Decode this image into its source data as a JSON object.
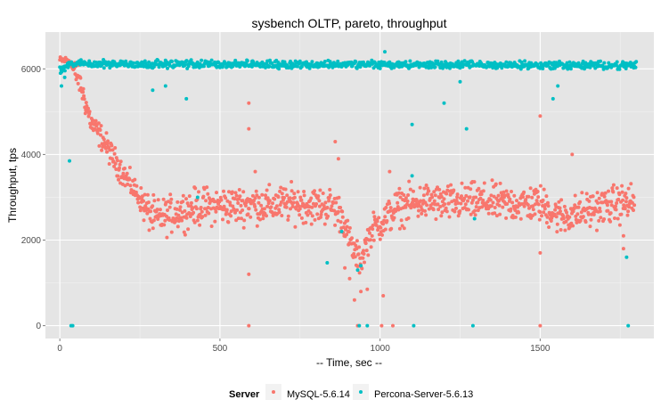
{
  "chart_data": {
    "type": "scatter",
    "title": "sysbench OLTP, pareto, throughput",
    "xlabel": "-- Time, sec --",
    "ylabel": "Throughput, tps",
    "xlim": [
      -45,
      1855
    ],
    "ylim": [
      -300,
      6860
    ],
    "x_ticks": [
      0,
      500,
      1000,
      1500
    ],
    "x_tick_labels": [
      "0",
      "500",
      "1000",
      "1500"
    ],
    "y_ticks": [
      0,
      2000,
      4000,
      6000
    ],
    "y_tick_labels": [
      "0",
      "2000",
      "4000",
      "6000"
    ],
    "grid": true,
    "legend": {
      "title": "Server",
      "placement": "bottom",
      "entries": [
        "MySQL-5.6.14",
        "Percona-Server-5.6.13"
      ]
    },
    "colors": {
      "mysql": "#f8766d",
      "percona": "#00bfc4",
      "panel": "#e5e5e5",
      "grid": "#ffffff"
    },
    "series": [
      {
        "name": "MySQL-5.6.14",
        "color": "#f8766d",
        "profile_x": [
          0,
          30,
          40,
          60,
          80,
          100,
          130,
          160,
          190,
          220,
          250,
          270,
          300,
          330,
          380,
          450,
          500,
          550,
          600,
          650,
          700,
          750,
          800,
          850,
          880,
          900,
          920,
          940,
          960,
          980,
          1000,
          1020,
          1050,
          1100,
          1150,
          1200,
          1300,
          1400,
          1500,
          1530,
          1560,
          1600,
          1650,
          1700,
          1750,
          1795
        ],
        "profile_y": [
          6200,
          6200,
          6000,
          5750,
          5200,
          4700,
          4400,
          4000,
          3650,
          3300,
          3000,
          2700,
          2500,
          2550,
          2700,
          2800,
          2800,
          2800,
          2850,
          2800,
          2850,
          2850,
          2800,
          2800,
          2600,
          2100,
          1700,
          1500,
          2000,
          2300,
          2400,
          2500,
          2750,
          2850,
          2900,
          2850,
          2900,
          2850,
          2850,
          2700,
          2550,
          2600,
          2700,
          2800,
          2850,
          2900
        ],
        "outliers": [
          [
            590,
            5200
          ],
          [
            590,
            4600
          ],
          [
            590,
            1200
          ],
          [
            590,
            0
          ],
          [
            610,
            3600
          ],
          [
            860,
            4300
          ],
          [
            870,
            3900
          ],
          [
            890,
            1350
          ],
          [
            905,
            1100
          ],
          [
            920,
            600
          ],
          [
            940,
            800
          ],
          [
            960,
            850
          ],
          [
            1010,
            700
          ],
          [
            1030,
            3600
          ],
          [
            1040,
            0
          ],
          [
            1500,
            0
          ],
          [
            1500,
            1700
          ],
          [
            1500,
            4900
          ],
          [
            1600,
            4000
          ],
          [
            1760,
            2100
          ],
          [
            1760,
            1800
          ],
          [
            1005,
            0
          ],
          [
            930,
            0
          ]
        ]
      },
      {
        "name": "Percona-Server-5.6.13",
        "color": "#00bfc4",
        "profile_x": [
          0,
          20,
          40,
          1800
        ],
        "profile_y": [
          5950,
          6050,
          6120,
          6080
        ],
        "outliers": [
          [
            5,
            5600
          ],
          [
            15,
            5800
          ],
          [
            30,
            3850
          ],
          [
            35,
            0
          ],
          [
            40,
            0
          ],
          [
            290,
            5500
          ],
          [
            330,
            5600
          ],
          [
            395,
            5300
          ],
          [
            600,
            6050
          ],
          [
            835,
            1470
          ],
          [
            880,
            2200
          ],
          [
            930,
            1300
          ],
          [
            935,
            0
          ],
          [
            940,
            1400
          ],
          [
            960,
            0
          ],
          [
            1000,
            6150
          ],
          [
            1015,
            6400
          ],
          [
            1100,
            4700
          ],
          [
            1100,
            3500
          ],
          [
            1105,
            0
          ],
          [
            1200,
            5200
          ],
          [
            1270,
            4600
          ],
          [
            1290,
            0
          ],
          [
            1295,
            2500
          ],
          [
            1540,
            5300
          ],
          [
            1555,
            5600
          ],
          [
            1770,
            1600
          ],
          [
            1775,
            0
          ],
          [
            430,
            3000
          ],
          [
            1250,
            5700
          ]
        ]
      }
    ]
  }
}
